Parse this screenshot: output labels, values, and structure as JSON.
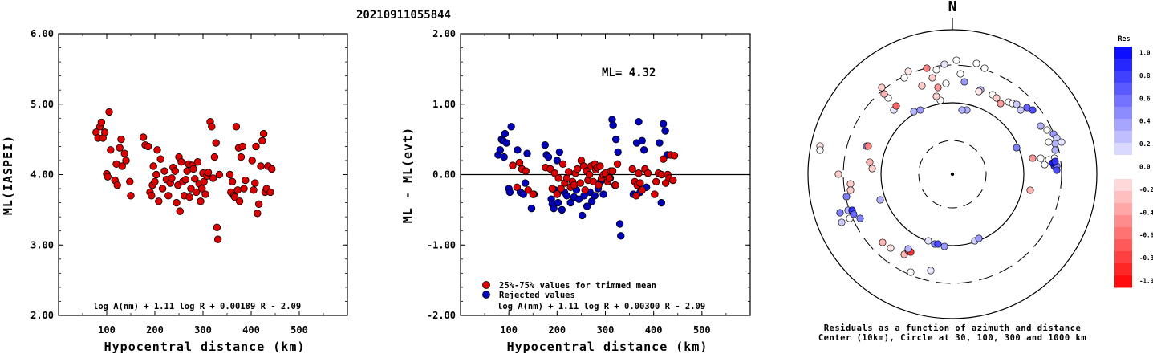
{
  "title": "20210911055844",
  "colors": {
    "accepted": "#dd0000",
    "rejected": "#0000bb",
    "residual_positive_max": "#0000ff",
    "residual_negative_max": "#ff0000"
  },
  "chart_data": [
    {
      "type": "scatter",
      "id": "ml-vs-distance",
      "xlabel": "Hypocentral distance (km)",
      "ylabel": "ML(IASPEI)",
      "xlim": [
        0,
        600
      ],
      "ylim": [
        2.0,
        6.0
      ],
      "xticks": [
        "100",
        "200",
        "300",
        "400",
        "500"
      ],
      "yticks": [
        "2.00",
        "3.00",
        "4.00",
        "5.00",
        "6.00"
      ],
      "formula": "log A(nm) + 1.11 log R + 0.00189 R - 2.09",
      "points": [
        [
          78,
          4.6
        ],
        [
          82,
          4.52
        ],
        [
          86,
          4.68
        ],
        [
          89,
          4.74
        ],
        [
          92,
          4.52
        ],
        [
          96,
          4.6
        ],
        [
          100,
          4.01
        ],
        [
          102,
          3.97
        ],
        [
          105,
          4.89
        ],
        [
          108,
          4.35
        ],
        [
          117,
          3.92
        ],
        [
          120,
          4.15
        ],
        [
          122,
          3.85
        ],
        [
          127,
          4.38
        ],
        [
          130,
          4.5
        ],
        [
          132,
          4.12
        ],
        [
          137,
          4.3
        ],
        [
          140,
          4.2
        ],
        [
          148,
          3.9
        ],
        [
          150,
          3.7
        ],
        [
          176,
          4.53
        ],
        [
          180,
          4.42
        ],
        [
          186,
          4.4
        ],
        [
          190,
          3.75
        ],
        [
          193,
          3.7
        ],
        [
          195,
          3.85
        ],
        [
          197,
          4.12
        ],
        [
          200,
          3.9
        ],
        [
          203,
          4.0
        ],
        [
          205,
          4.35
        ],
        [
          208,
          3.62
        ],
        [
          212,
          4.22
        ],
        [
          216,
          3.8
        ],
        [
          220,
          4.05
        ],
        [
          224,
          3.93
        ],
        [
          228,
          3.7
        ],
        [
          232,
          3.88
        ],
        [
          235,
          3.95
        ],
        [
          238,
          4.1
        ],
        [
          242,
          4.05
        ],
        [
          245,
          3.6
        ],
        [
          248,
          3.85
        ],
        [
          250,
          4.25
        ],
        [
          252,
          3.48
        ],
        [
          255,
          4.18
        ],
        [
          258,
          3.9
        ],
        [
          261,
          3.7
        ],
        [
          264,
          3.93
        ],
        [
          267,
          4.05
        ],
        [
          270,
          4.15
        ],
        [
          272,
          3.68
        ],
        [
          275,
          3.8
        ],
        [
          278,
          4.13
        ],
        [
          280,
          4.08
        ],
        [
          283,
          3.94
        ],
        [
          286,
          3.75
        ],
        [
          289,
          4.18
        ],
        [
          292,
          3.87
        ],
        [
          295,
          3.62
        ],
        [
          298,
          3.8
        ],
        [
          300,
          4.02
        ],
        [
          302,
          3.9
        ],
        [
          305,
          3.72
        ],
        [
          308,
          3.98
        ],
        [
          311,
          4.03
        ],
        [
          315,
          4.75
        ],
        [
          318,
          4.68
        ],
        [
          321,
          3.95
        ],
        [
          324,
          4.25
        ],
        [
          327,
          4.45
        ],
        [
          329,
          3.25
        ],
        [
          331,
          3.08
        ],
        [
          334,
          4.0
        ],
        [
          356,
          4.0
        ],
        [
          358,
          3.75
        ],
        [
          361,
          3.9
        ],
        [
          364,
          3.7
        ],
        [
          366,
          3.68
        ],
        [
          369,
          4.68
        ],
        [
          372,
          3.78
        ],
        [
          374,
          4.38
        ],
        [
          376,
          3.62
        ],
        [
          379,
          4.25
        ],
        [
          382,
          4.4
        ],
        [
          385,
          3.8
        ],
        [
          388,
          3.92
        ],
        [
          402,
          4.2
        ],
        [
          405,
          3.78
        ],
        [
          408,
          3.88
        ],
        [
          410,
          4.4
        ],
        [
          413,
          3.45
        ],
        [
          416,
          3.58
        ],
        [
          420,
          4.12
        ],
        [
          423,
          4.48
        ],
        [
          426,
          4.58
        ],
        [
          429,
          3.75
        ],
        [
          432,
          3.8
        ],
        [
          435,
          4.12
        ],
        [
          440,
          3.75
        ],
        [
          443,
          4.08
        ]
      ]
    },
    {
      "type": "scatter",
      "id": "residual-vs-distance",
      "xlabel": "Hypocentral distance (km)",
      "ylabel": "ML - ML(evt)",
      "xlim": [
        0,
        600
      ],
      "ylim": [
        -2.0,
        2.0
      ],
      "xticks": [
        "100",
        "200",
        "300",
        "400",
        "500"
      ],
      "yticks": [
        "-2.00",
        "-1.00",
        "0.00",
        "1.00",
        "2.00"
      ],
      "ml_label": "ML= 4.32",
      "formula": "log A(nm) + 1.11 log R + 0.00300 R - 2.09",
      "legend": [
        {
          "label": "25%-75% values for trimmed mean",
          "color": "#dd0000"
        },
        {
          "label": "Rejected values",
          "color": "#0000bb"
        }
      ],
      "points_accepted": [
        [
          108,
          0.13
        ],
        [
          117,
          -0.18
        ],
        [
          122,
          0.17
        ],
        [
          127,
          0.08
        ],
        [
          135,
          0.05
        ],
        [
          140,
          -0.22
        ],
        [
          150,
          -0.28
        ],
        [
          176,
          0.1
        ],
        [
          186,
          0.08
        ],
        [
          190,
          -0.2
        ],
        [
          195,
          0.02
        ],
        [
          200,
          -0.28
        ],
        [
          203,
          -0.05
        ],
        [
          208,
          -0.2
        ],
        [
          212,
          0.15
        ],
        [
          216,
          -0.12
        ],
        [
          220,
          -0.05
        ],
        [
          224,
          0.04
        ],
        [
          228,
          -0.18
        ],
        [
          232,
          -0.1
        ],
        [
          235,
          -0.15
        ],
        [
          238,
          0.02
        ],
        [
          242,
          0.08
        ],
        [
          248,
          -0.12
        ],
        [
          250,
          0.2
        ],
        [
          255,
          0.12
        ],
        [
          258,
          -0.22
        ],
        [
          261,
          0.05
        ],
        [
          264,
          -0.08
        ],
        [
          267,
          0.0
        ],
        [
          270,
          0.12
        ],
        [
          275,
          -0.1
        ],
        [
          278,
          0.15
        ],
        [
          280,
          0.07
        ],
        [
          283,
          0.1
        ],
        [
          286,
          -0.15
        ],
        [
          289,
          0.12
        ],
        [
          292,
          -0.05
        ],
        [
          296,
          0.0
        ],
        [
          300,
          0.02
        ],
        [
          305,
          -0.1
        ],
        [
          308,
          -0.05
        ],
        [
          311,
          0.05
        ],
        [
          315,
          0.05
        ],
        [
          321,
          -0.15
        ],
        [
          325,
          0.15
        ],
        [
          356,
          0.08
        ],
        [
          361,
          -0.1
        ],
        [
          364,
          -0.3
        ],
        [
          366,
          -0.15
        ],
        [
          369,
          0.02
        ],
        [
          372,
          -0.12
        ],
        [
          376,
          -0.22
        ],
        [
          382,
          0.08
        ],
        [
          388,
          0.02
        ],
        [
          402,
          -0.28
        ],
        [
          405,
          -0.1
        ],
        [
          410,
          0.02
        ],
        [
          416,
          0.0
        ],
        [
          420,
          0.22
        ],
        [
          425,
          -0.12
        ],
        [
          429,
          0.0
        ],
        [
          432,
          -0.05
        ],
        [
          435,
          0.28
        ],
        [
          440,
          -0.08
        ],
        [
          443,
          0.27
        ]
      ],
      "points_rejected": [
        [
          78,
          0.28
        ],
        [
          82,
          0.35
        ],
        [
          85,
          0.5
        ],
        [
          88,
          0.48
        ],
        [
          90,
          0.25
        ],
        [
          92,
          0.58
        ],
        [
          95,
          0.45
        ],
        [
          100,
          -0.2
        ],
        [
          102,
          -0.25
        ],
        [
          105,
          0.68
        ],
        [
          118,
          0.35
        ],
        [
          124,
          -0.25
        ],
        [
          130,
          -0.28
        ],
        [
          134,
          -0.12
        ],
        [
          138,
          0.3
        ],
        [
          147,
          -0.48
        ],
        [
          152,
          -0.28
        ],
        [
          175,
          0.42
        ],
        [
          178,
          0.28
        ],
        [
          182,
          0.25
        ],
        [
          188,
          -0.35
        ],
        [
          190,
          -0.42
        ],
        [
          193,
          -0.48
        ],
        [
          196,
          -0.22
        ],
        [
          200,
          0.2
        ],
        [
          202,
          -0.4
        ],
        [
          205,
          0.32
        ],
        [
          210,
          -0.5
        ],
        [
          215,
          -0.25
        ],
        [
          220,
          -0.3
        ],
        [
          228,
          -0.4
        ],
        [
          235,
          -0.32
        ],
        [
          240,
          -0.22
        ],
        [
          245,
          -0.35
        ],
        [
          252,
          -0.58
        ],
        [
          256,
          -0.3
        ],
        [
          262,
          -0.45
        ],
        [
          268,
          -0.25
        ],
        [
          272,
          -0.38
        ],
        [
          278,
          -0.3
        ],
        [
          285,
          -0.2
        ],
        [
          290,
          -0.1
        ],
        [
          296,
          -0.28
        ],
        [
          310,
          -0.05
        ],
        [
          314,
          0.78
        ],
        [
          316,
          0.7
        ],
        [
          320,
          -0.15
        ],
        [
          322,
          0.5
        ],
        [
          326,
          0.32
        ],
        [
          330,
          -0.7
        ],
        [
          332,
          -0.87
        ],
        [
          358,
          -0.28
        ],
        [
          365,
          0.45
        ],
        [
          369,
          0.75
        ],
        [
          372,
          -0.25
        ],
        [
          376,
          0.48
        ],
        [
          380,
          0.35
        ],
        [
          385,
          -0.18
        ],
        [
          412,
          0.45
        ],
        [
          416,
          -0.4
        ],
        [
          420,
          0.72
        ],
        [
          424,
          0.62
        ],
        [
          428,
          0.28
        ]
      ]
    },
    {
      "type": "scatter",
      "id": "residual-polar",
      "north_label": "N",
      "caption": [
        "Residuals as a function of azimuth and distance",
        "Center (10km), Circle at 30, 100, 300 and 1000 km"
      ],
      "colorbar": {
        "title": "Res",
        "range": [
          -1.0,
          1.0
        ],
        "labels": [
          "1.0",
          "0.8",
          "0.6",
          "0.4",
          "0.2",
          "0.0",
          "-0.2",
          "-0.4",
          "-0.6",
          "-0.8",
          "-1.0"
        ]
      },
      "points_offset_res": [
        [
          -55,
          -128,
          -0.1
        ],
        [
          -32,
          -132,
          -0.5
        ],
        [
          -10,
          -137,
          0.1
        ],
        [
          5,
          -142,
          0.0
        ],
        [
          30,
          -138,
          0.0
        ],
        [
          40,
          -132,
          0.0
        ],
        [
          -18,
          -108,
          -0.4
        ],
        [
          -38,
          -110,
          -0.2
        ],
        [
          -60,
          -120,
          0.0
        ],
        [
          -80,
          -95,
          0.0
        ],
        [
          -85,
          -100,
          -0.3
        ],
        [
          -88,
          -108,
          -0.2
        ],
        [
          -73,
          -80,
          0.1
        ],
        [
          -70,
          -85,
          -0.6
        ],
        [
          -48,
          -78,
          0.3
        ],
        [
          -40,
          -80,
          0.4
        ],
        [
          -15,
          -92,
          0.0
        ],
        [
          -20,
          -97,
          -0.2
        ],
        [
          -25,
          -120,
          -0.2
        ],
        [
          -20,
          -130,
          0.0
        ],
        [
          10,
          -125,
          0.0
        ],
        [
          15,
          -115,
          0.4
        ],
        [
          -8,
          -113,
          0.0
        ],
        [
          35,
          -105,
          0.3
        ],
        [
          33,
          -103,
          -0.1
        ],
        [
          50,
          -99,
          0.0
        ],
        [
          55,
          -95,
          -0.2
        ],
        [
          60,
          -88,
          -0.4
        ],
        [
          70,
          -90,
          0.0
        ],
        [
          75,
          -88,
          0.0
        ],
        [
          85,
          -80,
          0.2
        ],
        [
          80,
          -87,
          0.2
        ],
        [
          93,
          -83,
          0.6
        ],
        [
          100,
          -80,
          0.7
        ],
        [
          110,
          -60,
          0.3
        ],
        [
          118,
          -55,
          0.0
        ],
        [
          126,
          -50,
          0.4
        ],
        [
          130,
          -45,
          0.2
        ],
        [
          128,
          -38,
          0.3
        ],
        [
          136,
          -40,
          0.1
        ],
        [
          120,
          -40,
          0.0
        ],
        [
          128,
          -30,
          0.3
        ],
        [
          127,
          -20,
          0.0
        ],
        [
          110,
          -20,
          0.0
        ],
        [
          115,
          -12,
          0.0
        ],
        [
          120,
          -18,
          0.0
        ],
        [
          127,
          -10,
          0.8
        ],
        [
          130,
          -10,
          0.5
        ],
        [
          130,
          -5,
          0.7
        ],
        [
          125,
          -14,
          0.9
        ],
        [
          128,
          -16,
          0.8
        ],
        [
          80,
          -33,
          0.5
        ],
        [
          18,
          -80,
          0.3
        ],
        [
          12,
          -80,
          0.3
        ],
        [
          100,
          -20,
          -0.4
        ],
        [
          97,
          20,
          -0.3
        ],
        [
          -165,
          -35,
          -0.1
        ],
        [
          -165,
          -30,
          0.0
        ],
        [
          -107,
          -35,
          0.4
        ],
        [
          -142,
          0,
          -0.2
        ],
        [
          -127,
          12,
          -0.2
        ],
        [
          -127,
          20,
          -0.2
        ],
        [
          -132,
          28,
          0.5
        ],
        [
          -130,
          45,
          0.3
        ],
        [
          -128,
          55,
          0.0
        ],
        [
          -90,
          32,
          0.3
        ],
        [
          -140,
          48,
          0.5
        ],
        [
          -138,
          60,
          0.2
        ],
        [
          -125,
          45,
          -0.2
        ],
        [
          -105,
          -35,
          -0.5
        ],
        [
          -103,
          -15,
          -0.3
        ],
        [
          -100,
          -7,
          -0.2
        ],
        [
          -87,
          85,
          -0.3
        ],
        [
          -125,
          45,
          0.8
        ],
        [
          -123,
          50,
          0.6
        ],
        [
          -115,
          55,
          0.5
        ],
        [
          -77,
          92,
          -0.1
        ],
        [
          -60,
          100,
          -0.3
        ],
        [
          -55,
          95,
          -0.6
        ],
        [
          -52,
          97,
          -0.8
        ],
        [
          -22,
          87,
          0.5
        ],
        [
          -18,
          87,
          0.7
        ],
        [
          -10,
          90,
          0.4
        ],
        [
          28,
          83,
          0.2
        ],
        [
          33,
          80,
          0.4
        ],
        [
          -52,
          122,
          0.0
        ],
        [
          -27,
          120,
          0.1
        ],
        [
          -55,
          93,
          0.3
        ],
        [
          -30,
          83,
          0.1
        ]
      ]
    }
  ]
}
